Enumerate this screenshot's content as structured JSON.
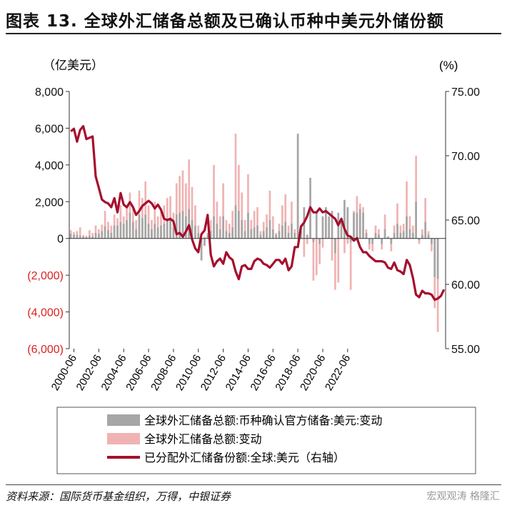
{
  "page": {
    "title": "图表 13. 全球外汇储备总额及已确认币种中美元外储份额",
    "source": "资料来源：国际货币基金组织，万得，中银证券",
    "watermark": "宏观观涛 格隆汇"
  },
  "chart_data": {
    "type": "bar+line",
    "left_unit": "（亿美元）",
    "right_unit": "(%)",
    "left_ylim": [
      -6000,
      8000
    ],
    "left_ticks": [
      8000,
      6000,
      4000,
      2000,
      0,
      -2000,
      -4000,
      -6000
    ],
    "left_tick_labels": [
      "8,000",
      "6,000",
      "4,000",
      "2,000",
      "0",
      "(2,000)",
      "(4,000)",
      "(6,000)"
    ],
    "right_ylim": [
      55,
      75
    ],
    "right_ticks": [
      75,
      70,
      65,
      60,
      55
    ],
    "right_tick_labels": [
      "75.00",
      "70.00",
      "65.00",
      "60.00",
      "55.00"
    ],
    "x_ticks": [
      "2000-06",
      "2002-06",
      "2004-06",
      "2006-06",
      "2008-06",
      "2010-06",
      "2012-06",
      "2014-06",
      "2016-06",
      "2018-06",
      "2020-06",
      "2022-06"
    ],
    "x_start": "2000-03",
    "legend": [
      {
        "label": "全球外汇储备总额:币种确认官方储备:美元:变动",
        "color": "#a6a6a6",
        "kind": "bar"
      },
      {
        "label": "全球外汇储备总额:变动",
        "color": "#f0b3b3",
        "kind": "bar"
      },
      {
        "label": "已分配外汇储备份额:全球:美元（右轴）",
        "color": "#a50f2d",
        "kind": "line"
      }
    ],
    "series": [
      {
        "name": "全球外汇储备总额:变动",
        "values": [
          450,
          350,
          400,
          600,
          200,
          150,
          450,
          300,
          700,
          500,
          750,
          1500,
          900,
          700,
          1300,
          1100,
          1800,
          1200,
          1700,
          2500,
          1600,
          1000,
          2600,
          2200,
          3100,
          1800,
          1000,
          2000,
          1200,
          1500,
          1800,
          2200,
          2300,
          1400,
          3000,
          3400,
          3700,
          3000,
          4300,
          2800,
          1800,
          700,
          -800,
          100,
          300,
          1000,
          4000,
          2000,
          1200,
          3000,
          1000,
          800,
          1500,
          5700,
          4000,
          2500,
          1000,
          3500,
          1000,
          1500,
          1700,
          400,
          900,
          1300,
          2600,
          1200,
          300,
          800,
          1800,
          2400,
          700,
          2000,
          500,
          3200,
          700,
          -1000,
          -300,
          1700,
          -2300,
          -2000,
          -1400,
          -500,
          1000,
          600,
          -1200,
          -2800,
          -2400,
          500,
          -800,
          -300,
          -2800,
          1500,
          2300,
          1900,
          1700,
          500,
          -600,
          -700,
          700,
          500,
          -600,
          1300,
          100,
          -700,
          700,
          1900,
          700,
          800,
          3100,
          1200,
          700,
          4500,
          -300,
          500,
          2200,
          400,
          -700,
          -3800,
          -5100
        ]
      },
      {
        "name": "全球外汇储备总额:币种确认官方储备:美元:变动",
        "values": [
          250,
          200,
          200,
          150,
          100,
          80,
          150,
          100,
          300,
          250,
          400,
          650,
          450,
          300,
          700,
          700,
          900,
          800,
          1000,
          1400,
          900,
          500,
          1300,
          1100,
          1300,
          800,
          500,
          800,
          600,
          700,
          800,
          1000,
          1000,
          600,
          1300,
          1400,
          1500,
          1200,
          1600,
          1000,
          700,
          300,
          -1200,
          -400,
          200,
          400,
          1200,
          800,
          500,
          1200,
          400,
          300,
          600,
          1800,
          1500,
          1000,
          400,
          1400,
          500,
          600,
          700,
          200,
          400,
          600,
          1000,
          500,
          200,
          400,
          700,
          900,
          300,
          800,
          300,
          5700,
          400,
          1700,
          200,
          3300,
          -200,
          1400,
          -300,
          1200,
          1700,
          1200,
          1500,
          -800,
          1400,
          1100,
          2100,
          1700,
          -200,
          1400,
          1400,
          1600,
          1400,
          300,
          -300,
          -300,
          300,
          200,
          -300,
          500,
          100,
          -300,
          300,
          800,
          300,
          400,
          1200,
          500,
          300,
          2000,
          -100,
          200,
          900,
          200,
          -300,
          -2100,
          -2200
        ]
      }
    ],
    "line": {
      "name": "已分配外汇储备份额:全球:美元（右轴）",
      "values": [
        71.9,
        72.1,
        71.1,
        72.0,
        72.3,
        71.3,
        71.4,
        71.5,
        68.4,
        67.5,
        66.6,
        66.4,
        66.3,
        66.0,
        66.7,
        65.6,
        67.1,
        66.2,
        66.0,
        66.4,
        66.0,
        65.4,
        65.7,
        66.1,
        66.3,
        66.5,
        66.3,
        65.9,
        66.2,
        65.8,
        65.1,
        65.0,
        65.1,
        64.9,
        63.9,
        64.0,
        63.7,
        64.1,
        64.6,
        63.5,
        62.8,
        62.5,
        63.9,
        64.2,
        65.4,
        62.3,
        61.4,
        61.8,
        62.0,
        61.6,
        62.5,
        62.1,
        61.9,
        61.0,
        60.4,
        61.4,
        61.5,
        61.2,
        61.2,
        61.8,
        62.0,
        61.9,
        61.6,
        61.5,
        61.3,
        61.6,
        61.9,
        61.9,
        61.6,
        62.0,
        61.1,
        61.4,
        62.9,
        62.9,
        64.5,
        64.8,
        65.3,
        66.0,
        65.6,
        65.6,
        65.9,
        65.6,
        65.7,
        65.5,
        65.3,
        65.1,
        64.6,
        65.1,
        64.3,
        63.8,
        63.7,
        63.4,
        63.6,
        62.9,
        62.5,
        62.5,
        62.2,
        62.0,
        61.8,
        61.8,
        61.8,
        61.7,
        61.3,
        61.2,
        61.7,
        61.1,
        61.0,
        60.8,
        61.9,
        61.5,
        60.5,
        59.2,
        59.0,
        59.5,
        59.3,
        59.3,
        59.2,
        58.8,
        58.9,
        59.1,
        59.6
      ]
    }
  }
}
